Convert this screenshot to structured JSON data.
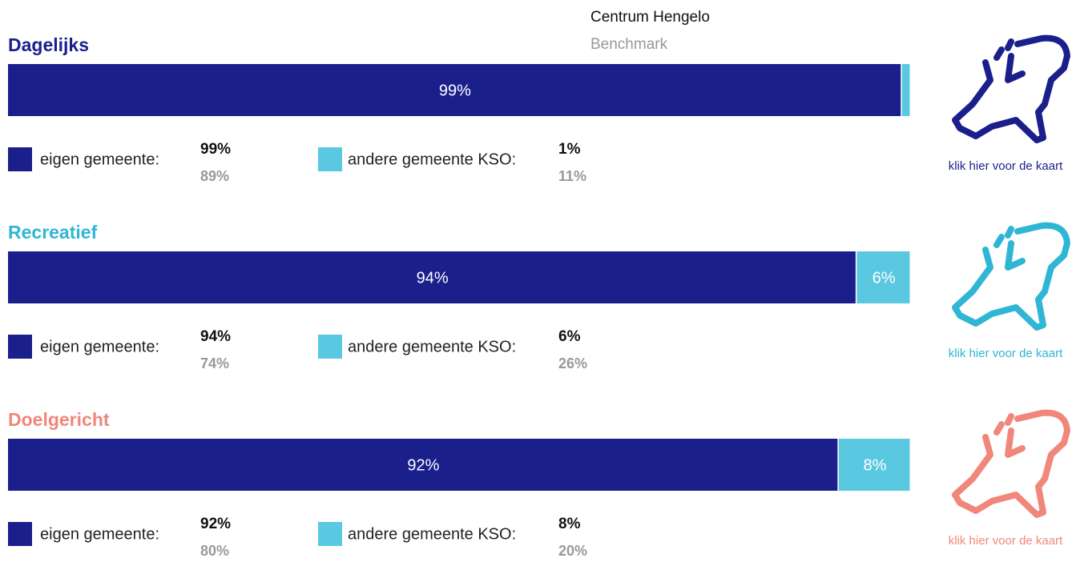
{
  "header": {
    "current": "Centrum Hengelo",
    "benchmark": "Benchmark"
  },
  "colors": {
    "own": "#1a1f8c",
    "other": "#5bc8e2"
  },
  "sections": [
    {
      "title": "Dagelijks",
      "color": "#1a1f8c",
      "values": [
        99,
        1
      ],
      "value_labels": [
        "99%",
        null
      ],
      "legend": [
        {
          "name": "eigen gemeente:",
          "label": "99%",
          "benchmark_label": "89%"
        },
        {
          "name": "andere gemeente KSO:",
          "label": "1%",
          "benchmark_label": "11%"
        }
      ],
      "link": "klik hier voor de kaart"
    },
    {
      "title": "Recreatief",
      "color": "#2fb6d4",
      "values": [
        94,
        6
      ],
      "value_labels": [
        "94%",
        "6%"
      ],
      "legend": [
        {
          "name": "eigen gemeente:",
          "label": "94%",
          "benchmark_label": "74%"
        },
        {
          "name": "andere gemeente KSO:",
          "label": "6%",
          "benchmark_label": "26%"
        }
      ],
      "link": "klik hier voor de kaart"
    },
    {
      "title": "Doelgericht",
      "color": "#f0877a",
      "values": [
        92,
        8
      ],
      "value_labels": [
        "92%",
        "8%"
      ],
      "legend": [
        {
          "name": "eigen gemeente:",
          "label": "92%",
          "benchmark_label": "80%"
        },
        {
          "name": "andere gemeente KSO:",
          "label": "8%",
          "benchmark_label": "20%"
        }
      ],
      "link": "klik hier voor de kaart"
    }
  ]
}
